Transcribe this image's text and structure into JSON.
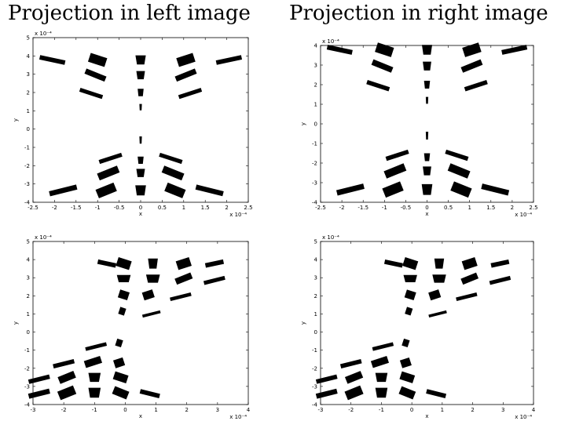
{
  "titles": {
    "left": "Projection in left image",
    "right": "Projection in right image"
  },
  "chart_data": [
    {
      "type": "scatter",
      "title": "",
      "column_title": "Projection in left image",
      "xlabel": "x",
      "ylabel": "y",
      "xlim": [
        -2.5,
        2.5
      ],
      "ylim": [
        -4,
        5
      ],
      "xticks": [
        "-2.5",
        "-2",
        "-1.5",
        "-1",
        "-0.5",
        "0",
        "0.5",
        "1",
        "1.5",
        "2",
        "2.5"
      ],
      "yticks": [
        "-4",
        "-3",
        "-2",
        "-1",
        "0",
        "1",
        "2",
        "3",
        "4",
        "5"
      ],
      "x_exponent": "x 10⁻⁴",
      "y_exponent": "x 10⁻⁴",
      "marks": [
        {
          "x": -2.05,
          "y": 3.78,
          "w": 0.6,
          "h": 0.25,
          "r": 12
        },
        {
          "x": -1.0,
          "y": 3.78,
          "w": 0.4,
          "h": 0.5,
          "r": 18
        },
        {
          "x": 0.0,
          "y": 3.78,
          "w": 0.24,
          "h": 0.5,
          "r": 0
        },
        {
          "x": 1.05,
          "y": 3.78,
          "w": 0.4,
          "h": 0.5,
          "r": -18
        },
        {
          "x": 2.05,
          "y": 3.78,
          "w": 0.6,
          "h": 0.25,
          "r": -12
        },
        {
          "x": -1.05,
          "y": 2.95,
          "w": 0.5,
          "h": 0.3,
          "r": 22
        },
        {
          "x": 0.0,
          "y": 2.95,
          "w": 0.2,
          "h": 0.45,
          "r": 0
        },
        {
          "x": 1.05,
          "y": 2.95,
          "w": 0.5,
          "h": 0.3,
          "r": -22
        },
        {
          "x": -1.15,
          "y": 1.95,
          "w": 0.55,
          "h": 0.22,
          "r": 18
        },
        {
          "x": 0.0,
          "y": 2.0,
          "w": 0.14,
          "h": 0.4,
          "r": 0
        },
        {
          "x": 1.15,
          "y": 1.95,
          "w": 0.55,
          "h": 0.22,
          "r": -18
        },
        {
          "x": 0.0,
          "y": 1.2,
          "w": 0.06,
          "h": 0.35,
          "r": 0
        },
        {
          "x": 0.0,
          "y": -0.6,
          "w": 0.06,
          "h": 0.4,
          "r": 0
        },
        {
          "x": 0.0,
          "y": -1.7,
          "w": 0.14,
          "h": 0.4,
          "r": 0
        },
        {
          "x": -0.7,
          "y": -1.6,
          "w": 0.55,
          "h": 0.22,
          "r": -18
        },
        {
          "x": 0.7,
          "y": -1.6,
          "w": 0.55,
          "h": 0.22,
          "r": 18
        },
        {
          "x": -0.75,
          "y": -2.4,
          "w": 0.5,
          "h": 0.4,
          "r": -22
        },
        {
          "x": 0.0,
          "y": -2.4,
          "w": 0.2,
          "h": 0.45,
          "r": 0
        },
        {
          "x": 0.75,
          "y": -2.4,
          "w": 0.5,
          "h": 0.4,
          "r": 22
        },
        {
          "x": -1.8,
          "y": -3.35,
          "w": 0.65,
          "h": 0.28,
          "r": -14
        },
        {
          "x": -0.8,
          "y": -3.35,
          "w": 0.45,
          "h": 0.5,
          "r": -22
        },
        {
          "x": 0.0,
          "y": -3.35,
          "w": 0.25,
          "h": 0.55,
          "r": 0
        },
        {
          "x": 0.8,
          "y": -3.35,
          "w": 0.45,
          "h": 0.5,
          "r": 22
        },
        {
          "x": 1.6,
          "y": -3.35,
          "w": 0.65,
          "h": 0.28,
          "r": 14
        }
      ]
    },
    {
      "type": "scatter",
      "title": "",
      "column_title": "Projection in right image",
      "xlabel": "x",
      "ylabel": "y",
      "xlim": [
        -2.5,
        2.5
      ],
      "ylim": [
        -4,
        4
      ],
      "xticks": [
        "-2.5",
        "-2",
        "-1.5",
        "-1",
        "-0.5",
        "0",
        "0.5",
        "1",
        "1.5",
        "2",
        "2.5"
      ],
      "yticks": [
        "-4",
        "-3",
        "-2",
        "-1",
        "0",
        "1",
        "2",
        "3",
        "4"
      ],
      "x_exponent": "x 10⁻⁴",
      "y_exponent": "x 10⁻⁴",
      "marks": [
        {
          "x": -2.05,
          "y": 3.78,
          "w": 0.6,
          "h": 0.25,
          "r": 12
        },
        {
          "x": -1.0,
          "y": 3.78,
          "w": 0.4,
          "h": 0.5,
          "r": 18
        },
        {
          "x": 0.0,
          "y": 3.78,
          "w": 0.24,
          "h": 0.5,
          "r": 0
        },
        {
          "x": 1.05,
          "y": 3.78,
          "w": 0.4,
          "h": 0.5,
          "r": -18
        },
        {
          "x": 2.05,
          "y": 3.78,
          "w": 0.6,
          "h": 0.25,
          "r": -12
        },
        {
          "x": -1.05,
          "y": 2.95,
          "w": 0.5,
          "h": 0.3,
          "r": 22
        },
        {
          "x": 0.0,
          "y": 2.95,
          "w": 0.2,
          "h": 0.45,
          "r": 0
        },
        {
          "x": 1.05,
          "y": 2.95,
          "w": 0.5,
          "h": 0.3,
          "r": -22
        },
        {
          "x": -1.15,
          "y": 1.95,
          "w": 0.55,
          "h": 0.22,
          "r": 18
        },
        {
          "x": 0.0,
          "y": 2.0,
          "w": 0.14,
          "h": 0.4,
          "r": 0
        },
        {
          "x": 1.15,
          "y": 1.95,
          "w": 0.55,
          "h": 0.22,
          "r": -18
        },
        {
          "x": 0.0,
          "y": 1.2,
          "w": 0.06,
          "h": 0.35,
          "r": 0
        },
        {
          "x": 0.0,
          "y": -0.6,
          "w": 0.06,
          "h": 0.4,
          "r": 0
        },
        {
          "x": 0.0,
          "y": -1.7,
          "w": 0.14,
          "h": 0.4,
          "r": 0
        },
        {
          "x": -0.7,
          "y": -1.6,
          "w": 0.55,
          "h": 0.22,
          "r": -18
        },
        {
          "x": 0.7,
          "y": -1.6,
          "w": 0.55,
          "h": 0.22,
          "r": 18
        },
        {
          "x": -0.75,
          "y": -2.4,
          "w": 0.5,
          "h": 0.4,
          "r": -22
        },
        {
          "x": 0.0,
          "y": -2.4,
          "w": 0.2,
          "h": 0.45,
          "r": 0
        },
        {
          "x": 0.75,
          "y": -2.4,
          "w": 0.5,
          "h": 0.4,
          "r": 22
        },
        {
          "x": -1.8,
          "y": -3.35,
          "w": 0.65,
          "h": 0.28,
          "r": -14
        },
        {
          "x": -0.8,
          "y": -3.35,
          "w": 0.45,
          "h": 0.5,
          "r": -22
        },
        {
          "x": 0.0,
          "y": -3.35,
          "w": 0.25,
          "h": 0.55,
          "r": 0
        },
        {
          "x": 0.8,
          "y": -3.35,
          "w": 0.45,
          "h": 0.5,
          "r": 22
        },
        {
          "x": 1.6,
          "y": -3.35,
          "w": 0.65,
          "h": 0.28,
          "r": 14
        }
      ]
    },
    {
      "type": "scatter",
      "title": "",
      "xlabel": "x",
      "ylabel": "y",
      "xlim": [
        -3,
        4
      ],
      "ylim": [
        -4,
        5
      ],
      "xticks": [
        "-3",
        "-2",
        "-1",
        "0",
        "1",
        "2",
        "3",
        "4"
      ],
      "yticks": [
        "-4",
        "-3",
        "-2",
        "-1",
        "0",
        "1",
        "2",
        "3",
        "4",
        "5"
      ],
      "x_exponent": "x 10⁻⁴",
      "y_exponent": "x 10⁻⁴",
      "marks": [
        {
          "x": -0.6,
          "y": 3.78,
          "w": 0.6,
          "h": 0.25,
          "r": 12
        },
        {
          "x": -0.05,
          "y": 3.78,
          "w": 0.45,
          "h": 0.5,
          "r": 18
        },
        {
          "x": 0.9,
          "y": 3.78,
          "w": 0.32,
          "h": 0.55,
          "r": 0
        },
        {
          "x": 1.9,
          "y": 3.78,
          "w": 0.45,
          "h": 0.5,
          "r": -18
        },
        {
          "x": 2.9,
          "y": 3.78,
          "w": 0.6,
          "h": 0.25,
          "r": -12
        },
        {
          "x": -0.05,
          "y": 2.95,
          "w": 0.45,
          "h": 0.4,
          "r": 0
        },
        {
          "x": 0.9,
          "y": 2.95,
          "w": 0.45,
          "h": 0.45,
          "r": 0
        },
        {
          "x": 1.9,
          "y": 2.95,
          "w": 0.55,
          "h": 0.35,
          "r": -22
        },
        {
          "x": 2.9,
          "y": 2.85,
          "w": 0.7,
          "h": 0.22,
          "r": -14
        },
        {
          "x": -0.05,
          "y": 2.05,
          "w": 0.32,
          "h": 0.45,
          "r": 18
        },
        {
          "x": 0.75,
          "y": 2.05,
          "w": 0.35,
          "h": 0.45,
          "r": -18
        },
        {
          "x": 1.8,
          "y": 1.95,
          "w": 0.7,
          "h": 0.2,
          "r": -14
        },
        {
          "x": -0.1,
          "y": 1.15,
          "w": 0.2,
          "h": 0.4,
          "r": 18
        },
        {
          "x": 0.85,
          "y": 1.0,
          "w": 0.6,
          "h": 0.16,
          "r": -14
        },
        {
          "x": -0.2,
          "y": -0.6,
          "w": 0.2,
          "h": 0.4,
          "r": 18
        },
        {
          "x": -0.95,
          "y": -0.8,
          "w": 0.7,
          "h": 0.2,
          "r": -14
        },
        {
          "x": -1.05,
          "y": -1.65,
          "w": 0.55,
          "h": 0.4,
          "r": -18
        },
        {
          "x": -2.0,
          "y": -1.75,
          "w": 0.7,
          "h": 0.24,
          "r": -14
        },
        {
          "x": -0.2,
          "y": -1.7,
          "w": 0.32,
          "h": 0.45,
          "r": -18
        },
        {
          "x": -2.8,
          "y": -2.6,
          "w": 0.7,
          "h": 0.25,
          "r": -14
        },
        {
          "x": -1.9,
          "y": -2.5,
          "w": 0.55,
          "h": 0.4,
          "r": -22
        },
        {
          "x": -1.0,
          "y": -2.5,
          "w": 0.4,
          "h": 0.5,
          "r": 0
        },
        {
          "x": -0.15,
          "y": -2.5,
          "w": 0.45,
          "h": 0.45,
          "r": 18
        },
        {
          "x": -2.8,
          "y": -3.4,
          "w": 0.7,
          "h": 0.28,
          "r": -14
        },
        {
          "x": -1.9,
          "y": -3.35,
          "w": 0.55,
          "h": 0.5,
          "r": -22
        },
        {
          "x": -1.0,
          "y": -3.35,
          "w": 0.4,
          "h": 0.55,
          "r": 0
        },
        {
          "x": -0.15,
          "y": -3.35,
          "w": 0.5,
          "h": 0.45,
          "r": 22
        },
        {
          "x": 0.8,
          "y": -3.4,
          "w": 0.65,
          "h": 0.25,
          "r": 14
        }
      ]
    },
    {
      "type": "scatter",
      "title": "",
      "xlabel": "x",
      "ylabel": "y",
      "xlim": [
        -3,
        4
      ],
      "ylim": [
        -4,
        5
      ],
      "xticks": [
        "-3",
        "-2",
        "-1",
        "0",
        "1",
        "2",
        "3",
        "4"
      ],
      "yticks": [
        "-4",
        "-3",
        "-2",
        "-1",
        "0",
        "1",
        "2",
        "3",
        "4",
        "5"
      ],
      "x_exponent": "x 10⁻⁴",
      "y_exponent": "x 10⁻⁴",
      "marks": [
        {
          "x": -0.6,
          "y": 3.78,
          "w": 0.6,
          "h": 0.25,
          "r": 12
        },
        {
          "x": -0.05,
          "y": 3.78,
          "w": 0.45,
          "h": 0.5,
          "r": 18
        },
        {
          "x": 0.9,
          "y": 3.78,
          "w": 0.32,
          "h": 0.55,
          "r": 0
        },
        {
          "x": 1.9,
          "y": 3.78,
          "w": 0.45,
          "h": 0.5,
          "r": -18
        },
        {
          "x": 2.9,
          "y": 3.78,
          "w": 0.6,
          "h": 0.25,
          "r": -12
        },
        {
          "x": -0.05,
          "y": 2.95,
          "w": 0.45,
          "h": 0.4,
          "r": 0
        },
        {
          "x": 0.9,
          "y": 2.95,
          "w": 0.45,
          "h": 0.45,
          "r": 0
        },
        {
          "x": 1.9,
          "y": 2.95,
          "w": 0.55,
          "h": 0.35,
          "r": -22
        },
        {
          "x": 2.9,
          "y": 2.85,
          "w": 0.7,
          "h": 0.22,
          "r": -14
        },
        {
          "x": -0.05,
          "y": 2.05,
          "w": 0.32,
          "h": 0.45,
          "r": 18
        },
        {
          "x": 0.75,
          "y": 2.05,
          "w": 0.35,
          "h": 0.45,
          "r": -18
        },
        {
          "x": 1.8,
          "y": 1.95,
          "w": 0.7,
          "h": 0.2,
          "r": -14
        },
        {
          "x": -0.1,
          "y": 1.15,
          "w": 0.2,
          "h": 0.4,
          "r": 18
        },
        {
          "x": 0.85,
          "y": 1.0,
          "w": 0.6,
          "h": 0.16,
          "r": -14
        },
        {
          "x": -0.2,
          "y": -0.6,
          "w": 0.2,
          "h": 0.4,
          "r": 18
        },
        {
          "x": -0.95,
          "y": -0.8,
          "w": 0.7,
          "h": 0.2,
          "r": -14
        },
        {
          "x": -1.05,
          "y": -1.65,
          "w": 0.55,
          "h": 0.4,
          "r": -18
        },
        {
          "x": -2.0,
          "y": -1.75,
          "w": 0.7,
          "h": 0.24,
          "r": -14
        },
        {
          "x": -0.2,
          "y": -1.7,
          "w": 0.32,
          "h": 0.45,
          "r": -18
        },
        {
          "x": -2.8,
          "y": -2.6,
          "w": 0.7,
          "h": 0.25,
          "r": -14
        },
        {
          "x": -1.9,
          "y": -2.5,
          "w": 0.55,
          "h": 0.4,
          "r": -22
        },
        {
          "x": -1.0,
          "y": -2.5,
          "w": 0.4,
          "h": 0.5,
          "r": 0
        },
        {
          "x": -0.15,
          "y": -2.5,
          "w": 0.45,
          "h": 0.45,
          "r": 18
        },
        {
          "x": -2.8,
          "y": -3.4,
          "w": 0.7,
          "h": 0.28,
          "r": -14
        },
        {
          "x": -1.9,
          "y": -3.35,
          "w": 0.55,
          "h": 0.5,
          "r": -22
        },
        {
          "x": -1.0,
          "y": -3.35,
          "w": 0.4,
          "h": 0.55,
          "r": 0
        },
        {
          "x": -0.15,
          "y": -3.35,
          "w": 0.5,
          "h": 0.45,
          "r": 22
        },
        {
          "x": 0.8,
          "y": -3.4,
          "w": 0.65,
          "h": 0.25,
          "r": 14
        }
      ]
    }
  ]
}
